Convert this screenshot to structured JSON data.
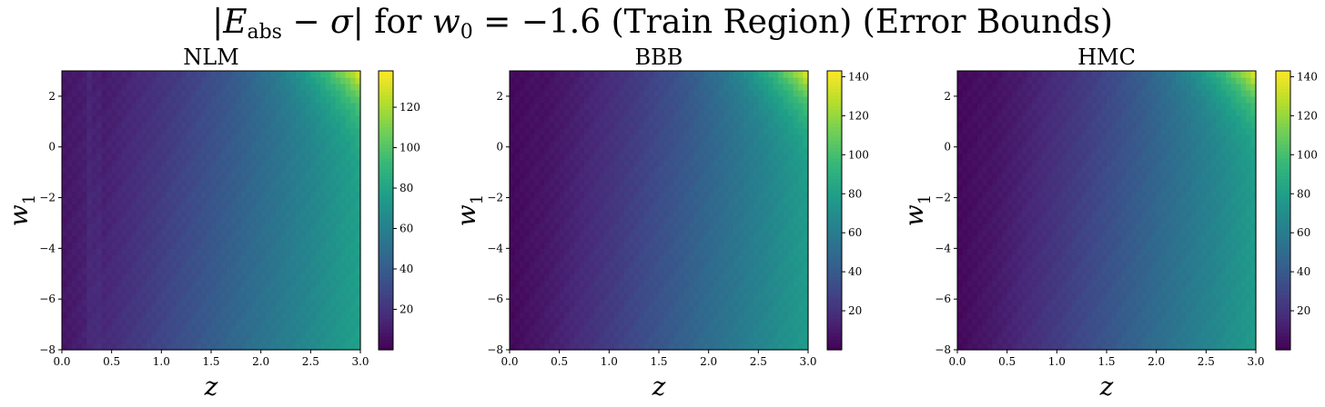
{
  "figure": {
    "title_pre": "|",
    "title_var": "E",
    "title_sub": "abs",
    "title_mid": " − ",
    "title_sigma": "σ",
    "title_post": "| for ",
    "title_w": "w",
    "title_wsub": "0",
    "title_tail": " = −1.6 (Train Region) (Error Bounds)"
  },
  "chart_data": [
    {
      "type": "heatmap",
      "title": "NLM",
      "xlabel": "z",
      "ylabel": "w1",
      "xlim": [
        0.0,
        3.0
      ],
      "ylim": [
        -8,
        3
      ],
      "xticks": [
        "0.0",
        "0.5",
        "1.0",
        "1.5",
        "2.0",
        "2.5",
        "3.0"
      ],
      "yticks": [
        "−8",
        "−6",
        "−4",
        "−2",
        "0",
        "2"
      ],
      "colormap": "viridis",
      "colorbar_range": [
        0,
        138
      ],
      "colorbar_ticks": [
        "20",
        "40",
        "60",
        "80",
        "100",
        "120"
      ],
      "value_corners": {
        "z0_wlow": 8,
        "z0_whigh": 5,
        "z3_wlow": 78,
        "z3_whigh": 138
      }
    },
    {
      "type": "heatmap",
      "title": "BBB",
      "xlabel": "z",
      "ylabel": "w1",
      "xlim": [
        0.0,
        3.0
      ],
      "ylim": [
        -8,
        3
      ],
      "xticks": [
        "0.0",
        "0.5",
        "1.0",
        "1.5",
        "2.0",
        "2.5",
        "3.0"
      ],
      "yticks": [
        "−8",
        "−6",
        "−4",
        "−2",
        "0",
        "2"
      ],
      "colormap": "viridis",
      "colorbar_range": [
        0,
        143
      ],
      "colorbar_ticks": [
        "20",
        "40",
        "60",
        "80",
        "100",
        "120",
        "140"
      ],
      "value_corners": {
        "z0_wlow": 3,
        "z0_whigh": 3,
        "z3_wlow": 78,
        "z3_whigh": 143
      }
    },
    {
      "type": "heatmap",
      "title": "HMC",
      "xlabel": "z",
      "ylabel": "w1",
      "xlim": [
        0.0,
        3.0
      ],
      "ylim": [
        -8,
        3
      ],
      "xticks": [
        "0.0",
        "0.5",
        "1.0",
        "1.5",
        "2.0",
        "2.5",
        "3.0"
      ],
      "yticks": [
        "−8",
        "−6",
        "−4",
        "−2",
        "0",
        "2"
      ],
      "colormap": "viridis",
      "colorbar_range": [
        0,
        143
      ],
      "colorbar_ticks": [
        "20",
        "40",
        "60",
        "80",
        "100",
        "120",
        "140"
      ],
      "value_corners": {
        "z0_wlow": 3,
        "z0_whigh": 3,
        "z3_wlow": 78,
        "z3_whigh": 143
      }
    }
  ]
}
